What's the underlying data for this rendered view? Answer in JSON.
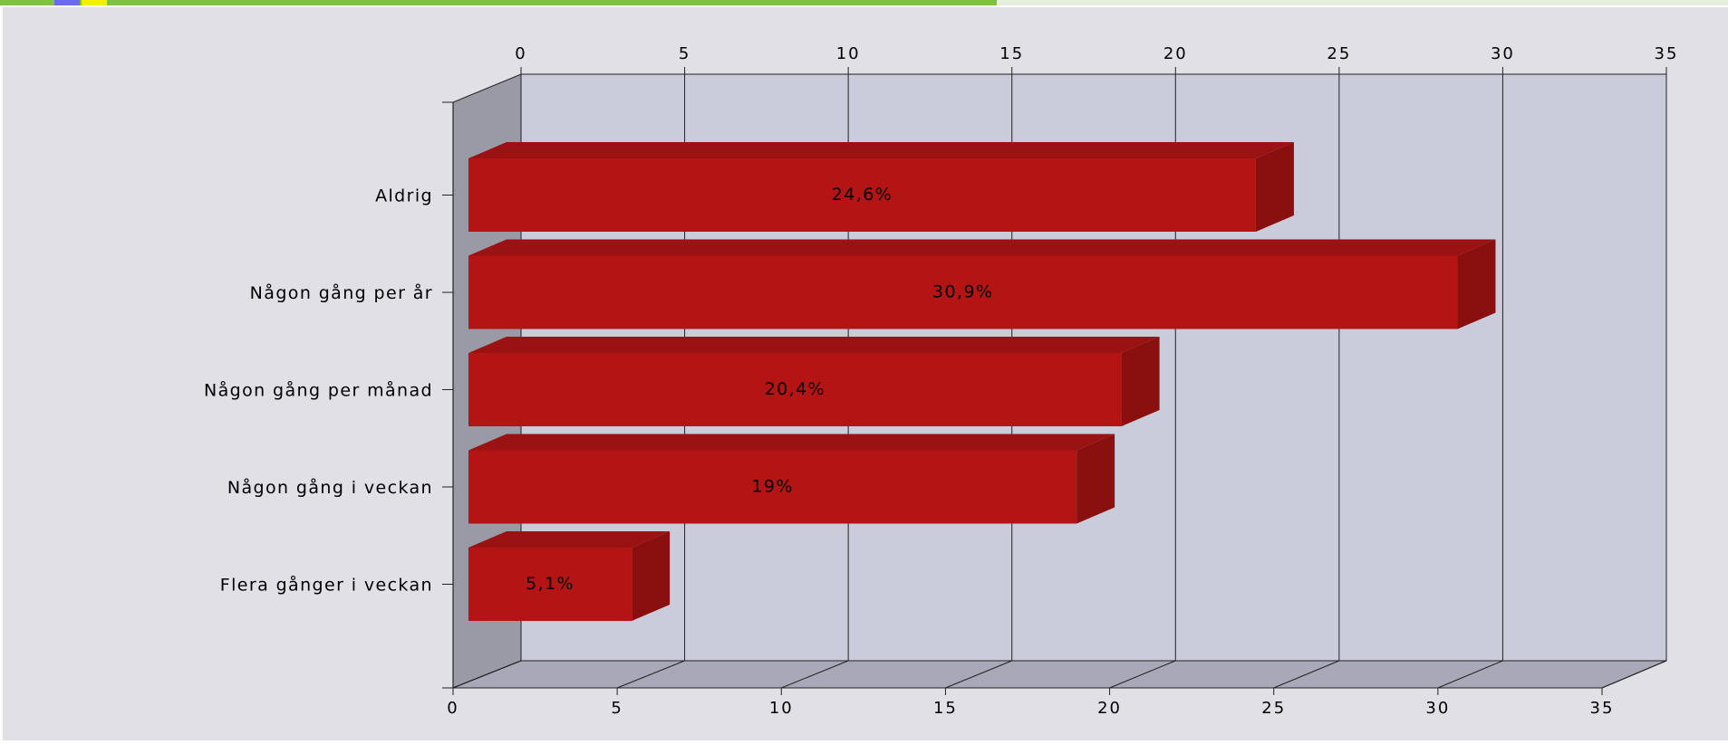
{
  "chart_data": {
    "type": "bar",
    "orientation": "horizontal",
    "render": "3d",
    "categories": [
      "Aldrig",
      "Någon gång per år",
      "Någon gång per månad",
      "Någon gång i veckan",
      "Flera gånger i veckan"
    ],
    "values": [
      24.6,
      30.9,
      20.4,
      19,
      5.1
    ],
    "data_labels": [
      "24,6%",
      "30,9%",
      "20,4%",
      "19%",
      "5,1%"
    ],
    "title": "",
    "xlabel": "",
    "ylabel": "",
    "xlim": [
      0,
      35
    ],
    "xticks": [
      "0",
      "5",
      "10",
      "15",
      "20",
      "25",
      "30",
      "35"
    ],
    "grid": true,
    "legend": "none"
  },
  "colors": {
    "bar_front": "#b41414",
    "bar_top": "#9a1212",
    "bar_side": "#8a0f0f",
    "plot_back": "#cacbdb",
    "plot_floor": "#a8a8b8",
    "plot_wall": "#999aa6",
    "background": "#e0e0e6",
    "accent_green": "#7fc241",
    "accent_blue": "#6a6af0",
    "accent_yellow": "#f2f000"
  }
}
